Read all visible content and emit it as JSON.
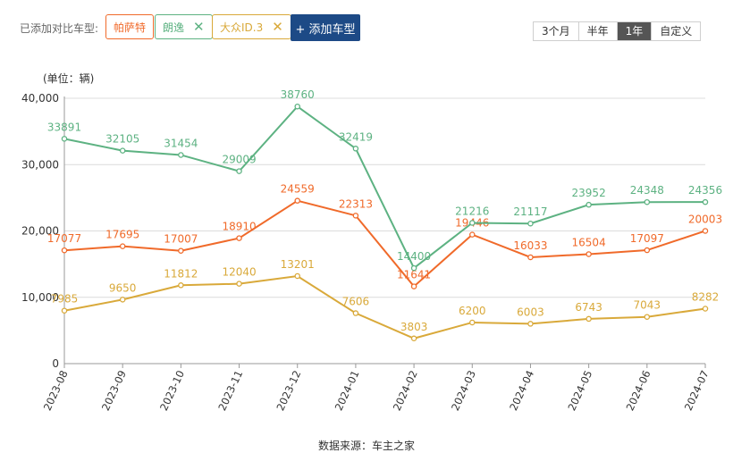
{
  "toolbar": {
    "added_label": "已添加对比车型:",
    "chips": [
      {
        "label": "帕萨特",
        "color": "#f06a2a",
        "removable": false
      },
      {
        "label": "朗逸",
        "color": "#5db282",
        "removable": true
      },
      {
        "label": "大众ID.3",
        "color": "#d9a93a",
        "removable": true
      }
    ],
    "add_button": "+ 添加车型",
    "ranges": [
      "3个月",
      "半年",
      "1年",
      "自定义"
    ],
    "active_range": "1年"
  },
  "unit_label": "(单位：辆)",
  "source_label": "数据来源：车主之家",
  "chart_data": {
    "type": "line",
    "categories": [
      "2023-08",
      "2023-09",
      "2023-10",
      "2023-11",
      "2023-12",
      "2024-01",
      "2024-02",
      "2024-03",
      "2024-04",
      "2024-05",
      "2024-06",
      "2024-07"
    ],
    "ylim": [
      0,
      40000
    ],
    "yticks": [
      0,
      10000,
      20000,
      30000,
      40000
    ],
    "ytick_labels": [
      "0",
      "10,000",
      "20,000",
      "30,000",
      "40,000"
    ],
    "grid": true,
    "series": [
      {
        "name": "帕萨特",
        "color": "#f06a2a",
        "values": [
          17077,
          17695,
          17007,
          18910,
          24559,
          22313,
          11641,
          19446,
          16033,
          16504,
          17097,
          20003
        ]
      },
      {
        "name": "朗逸",
        "color": "#5db282",
        "values": [
          33891,
          32105,
          31454,
          29009,
          38760,
          32419,
          14400,
          21216,
          21117,
          23952,
          24348,
          24356
        ]
      },
      {
        "name": "大众ID.3",
        "color": "#d9a93a",
        "values": [
          7985,
          9650,
          11812,
          12040,
          13201,
          7606,
          3803,
          6200,
          6003,
          6743,
          7043,
          8282
        ]
      }
    ]
  }
}
